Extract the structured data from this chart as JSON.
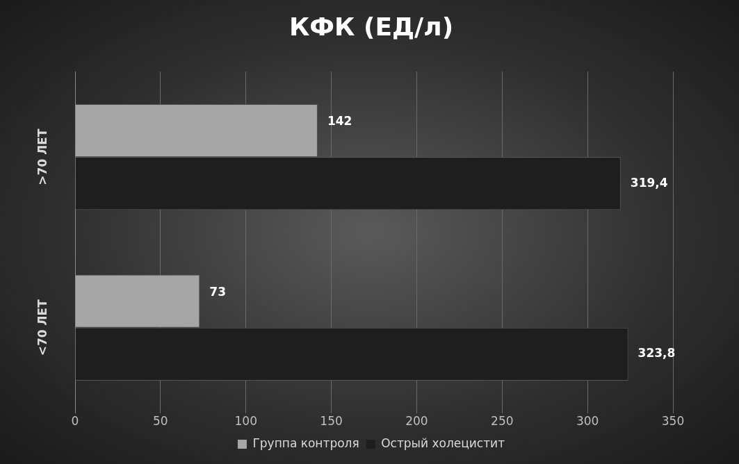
{
  "chart_data": {
    "type": "bar",
    "orientation": "horizontal",
    "title": "КФК (ЕД/л)",
    "categories": [
      ">70 ЛЕТ",
      "<70 ЛЕТ"
    ],
    "series": [
      {
        "name": "Группа контроля",
        "color": "#a6a6a6",
        "values": [
          142,
          73
        ],
        "value_labels": [
          "142",
          "73"
        ]
      },
      {
        "name": "Острый холецистит",
        "color": "#1e1e1e",
        "values": [
          319.4,
          323.8
        ],
        "value_labels": [
          "319,4",
          "323,8"
        ]
      }
    ],
    "xlim": [
      0,
      350
    ],
    "xticks": [
      0,
      50,
      100,
      150,
      200,
      250,
      300,
      350
    ],
    "grid": "x",
    "legend": "bottom"
  }
}
